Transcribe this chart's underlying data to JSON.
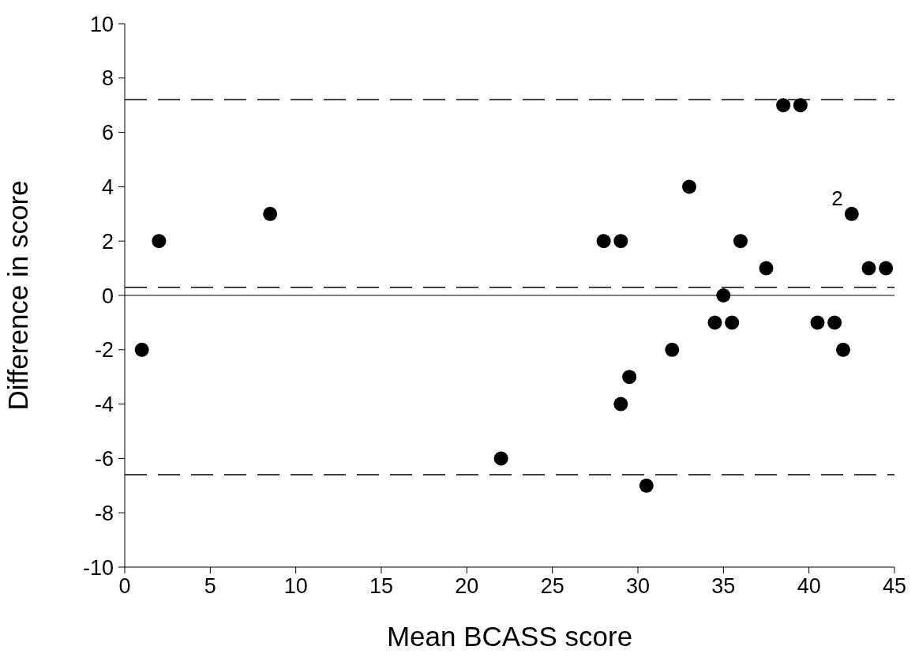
{
  "chart_data": {
    "type": "scatter",
    "xlabel": "Mean BCASS score",
    "ylabel": "Difference in score",
    "x": [
      1,
      2,
      8.5,
      22,
      28,
      29,
      29,
      29.5,
      30.5,
      32,
      33,
      34.5,
      35,
      35.5,
      36,
      37.5,
      38.5,
      39.5,
      40.5,
      41.5,
      42,
      42.5,
      43.5,
      44.5
    ],
    "series": [
      {
        "color": "#000000",
        "values": [
          -2,
          2,
          3,
          -6,
          2,
          2,
          -4,
          -3,
          -7,
          -2,
          4,
          -1,
          0,
          -1,
          2,
          1,
          7,
          7,
          -1,
          -1,
          -2,
          3,
          1,
          1
        ]
      }
    ],
    "xlim": [
      0,
      45
    ],
    "xticks": [
      0,
      5,
      10,
      15,
      20,
      25,
      30,
      35,
      40,
      45
    ],
    "ylim": [
      -10,
      10
    ],
    "yticks": [
      -10,
      -8,
      -6,
      -4,
      -2,
      0,
      2,
      4,
      6,
      8,
      10
    ],
    "ref_lines": [
      {
        "axis": "y",
        "value": 7.2,
        "line_style": "dashed",
        "color": "#000000"
      },
      {
        "axis": "y",
        "value": 0.3,
        "line_style": "dashed",
        "color": "#000000"
      },
      {
        "axis": "y",
        "value": 0,
        "line_style": "solid",
        "color": "#000000"
      },
      {
        "axis": "y",
        "value": -6.6,
        "line_style": "dashed",
        "color": "#000000"
      }
    ],
    "annotations": [
      {
        "text": "2",
        "x": 42.5,
        "y": 3
      }
    ],
    "grid": false,
    "legend": false,
    "marker": "circle"
  }
}
